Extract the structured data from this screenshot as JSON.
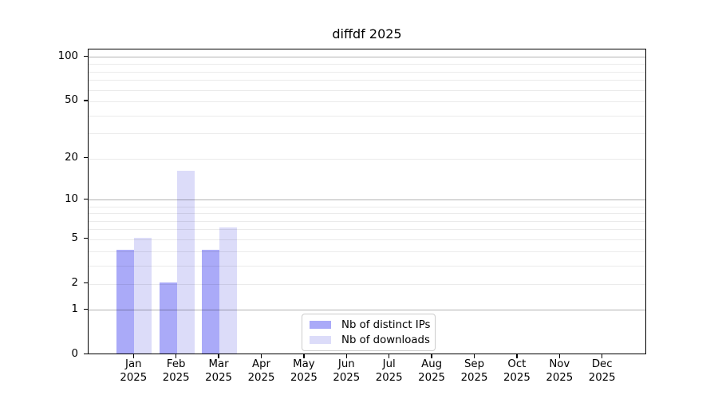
{
  "title": "diffdf 2025",
  "chart_data": {
    "type": "bar",
    "title": "diffdf 2025",
    "x": {
      "months": [
        "Jan",
        "Feb",
        "Mar",
        "Apr",
        "May",
        "Jun",
        "Jul",
        "Aug",
        "Sep",
        "Oct",
        "Nov",
        "Dec"
      ],
      "year": "2025"
    },
    "categories": [
      "Jan 2025",
      "Feb 2025",
      "Mar 2025",
      "Apr 2025",
      "May 2025",
      "Jun 2025",
      "Jul 2025",
      "Aug 2025",
      "Sep 2025",
      "Oct 2025",
      "Nov 2025",
      "Dec 2025"
    ],
    "series": [
      {
        "name": "Nb of distinct IPs",
        "color": "#aaaaf8",
        "values": [
          4,
          2,
          4,
          0,
          0,
          0,
          0,
          0,
          0,
          0,
          0,
          0
        ]
      },
      {
        "name": "Nb of downloads",
        "color": "#dcdcf9",
        "values": [
          5,
          16,
          6,
          0,
          0,
          0,
          0,
          0,
          0,
          0,
          0,
          0
        ]
      }
    ],
    "yscale": "log1p",
    "ylim": [
      0,
      113
    ],
    "y_tick_values": [
      100,
      50,
      20,
      10,
      5,
      2,
      1,
      0
    ],
    "y_tick_labels": [
      "100",
      "50",
      "20",
      "10",
      "5",
      "2",
      "1",
      "0"
    ],
    "y_major_gridlines": [
      1,
      10,
      100
    ],
    "y_minor_gridlines": [
      2,
      3,
      4,
      5,
      6,
      7,
      8,
      9,
      20,
      30,
      40,
      50,
      60,
      70,
      80,
      90
    ],
    "grid": true,
    "legend_position": "lower center"
  },
  "colors": {
    "background": "#ffffff",
    "bar_distinct_ips": "#aaaaf8",
    "bar_downloads": "#dcdcf9",
    "axis": "#000000",
    "major_grid": "rgba(0,0,0,0.30)",
    "minor_grid": "rgba(0,0,0,0.08)",
    "legend_border": "#cccccc"
  }
}
